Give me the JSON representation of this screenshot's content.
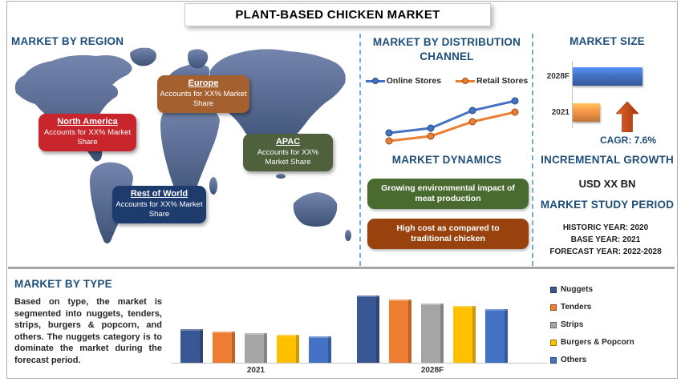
{
  "title": "PLANT-BASED CHICKEN MARKET",
  "palette": {
    "heading_blue": "#1F4E79",
    "divider_gray": "#A6A6A6",
    "dashed_separator_blue": "#5D9FD3",
    "map_blue_top": "#7485AD",
    "map_blue_bottom": "#3E5277",
    "growth_arrow_red": "#C4400F"
  },
  "sections": {
    "region": {
      "heading": "MARKET BY REGION",
      "regions": [
        {
          "name": "North America",
          "desc": "Accounts for XX% Market Share",
          "color": "#C9252D"
        },
        {
          "name": "Europe",
          "desc": "Accounts for XX% Market Share",
          "color": "#A4602F"
        },
        {
          "name": "APAC",
          "desc": "Accounts for XX% Market Share",
          "color": "#4F603C"
        },
        {
          "name": "Rest of World",
          "desc": "Accounts for XX% Market Share",
          "color": "#1E3B6E"
        }
      ]
    },
    "distribution": {
      "heading": "MARKET BY DISTRIBUTION CHANNEL"
    },
    "dynamics": {
      "heading": "MARKET DYNAMICS",
      "items": [
        {
          "text": "Growing environmental impact of meat production",
          "color": "#4A6B2F"
        },
        {
          "text": "High cost as compared to traditional chicken",
          "color": "#99420E"
        }
      ]
    },
    "market_size": {
      "heading": "MARKET SIZE",
      "cagr_label": "CAGR: 7.6%"
    },
    "incremental_growth": {
      "heading": "INCREMENTAL GROWTH",
      "value": "USD XX BN"
    },
    "study_period": {
      "heading": "MARKET STUDY PERIOD",
      "lines": [
        "HISTORIC YEAR: 2020",
        "BASE YEAR: 2021",
        "FORECAST YEAR: 2022-2028"
      ]
    },
    "type": {
      "heading": "MARKET BY TYPE",
      "paragraph": "Based on type, the market is segmented into nuggets, tenders, strips, burgers & popcorn, and others. The nuggets category is to dominate the market during the forecast period."
    }
  },
  "chart_data": [
    {
      "id": "distribution-channel-line",
      "type": "line",
      "title": "MARKET BY DISTRIBUTION CHANNEL",
      "x": [
        1,
        2,
        3,
        4
      ],
      "axes_visible": false,
      "legend_position": "top",
      "note": "No axis labels shown; values are relative estimates read from line heights.",
      "series": [
        {
          "name": "Online Stores",
          "color": "#4472C4",
          "values": [
            3.2,
            3.5,
            4.6,
            5.2
          ]
        },
        {
          "name": "Retail Stores",
          "color": "#ED7D31",
          "values": [
            2.7,
            3.0,
            3.9,
            4.5
          ]
        }
      ]
    },
    {
      "id": "market-size-bars",
      "type": "bar",
      "orientation": "horizontal",
      "title": "MARKET SIZE",
      "categories": [
        "2028F",
        "2021"
      ],
      "values": [
        100,
        39
      ],
      "colors": [
        "#4472C4",
        "#F79646"
      ],
      "note": "No value axis shown; values are relative (2028F = 100).",
      "cagr": "7.6%"
    },
    {
      "id": "market-by-type-columns",
      "type": "bar",
      "title": "MARKET BY TYPE",
      "categories": [
        "2021",
        "2028F"
      ],
      "ylim": [
        0,
        110
      ],
      "grid": false,
      "legend_position": "right",
      "note": "No value axis shown; values are relative estimates (2028F Nuggets = 100).",
      "series": [
        {
          "name": "Nuggets",
          "color": "#3A5795",
          "values": [
            50,
            100
          ]
        },
        {
          "name": "Tenders",
          "color": "#ED7D31",
          "values": [
            47,
            94
          ]
        },
        {
          "name": "Strips",
          "color": "#A5A5A5",
          "values": [
            44,
            89
          ]
        },
        {
          "name": "Burgers & Popcorn",
          "color": "#FFC000",
          "values": [
            42,
            85
          ]
        },
        {
          "name": "Others",
          "color": "#4472C4",
          "values": [
            39,
            80
          ]
        }
      ]
    }
  ]
}
